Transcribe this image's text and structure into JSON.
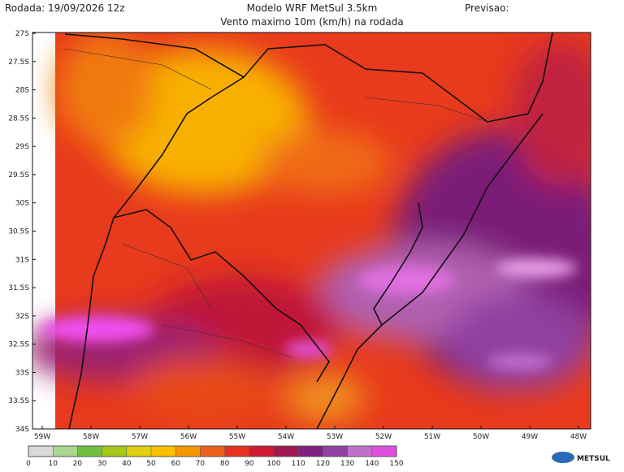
{
  "header": {
    "left": "Rodada: 19/09/2026 12z",
    "title": "Modelo WRF MetSul 3.5km",
    "subtitle": "Vento maximo 10m (km/h) na rodada",
    "right": "Previsao:"
  },
  "map": {
    "lat_labels": [
      "27S",
      "27.5S",
      "28S",
      "28.5S",
      "29S",
      "29.5S",
      "30S",
      "30.5S",
      "31S",
      "31.5S",
      "32S",
      "32.5S",
      "33S",
      "33.5S",
      "34S"
    ],
    "lon_labels": [
      "59W",
      "58W",
      "57W",
      "56W",
      "55W",
      "54W",
      "53W",
      "52W",
      "51W",
      "50W",
      "49W",
      "48W"
    ]
  },
  "colorbar": {
    "ticks": [
      0,
      10,
      20,
      30,
      40,
      50,
      60,
      70,
      80,
      90,
      100,
      110,
      120,
      130,
      140,
      150
    ],
    "colors": [
      "#d8d8d8",
      "#a8d890",
      "#70c040",
      "#a8c818",
      "#e0d010",
      "#f8c000",
      "#f89800",
      "#f06018",
      "#e83020",
      "#d01830",
      "#a01850",
      "#802080",
      "#9040a0",
      "#c070c8",
      "#e050e0"
    ]
  },
  "logo": "METSUL"
}
